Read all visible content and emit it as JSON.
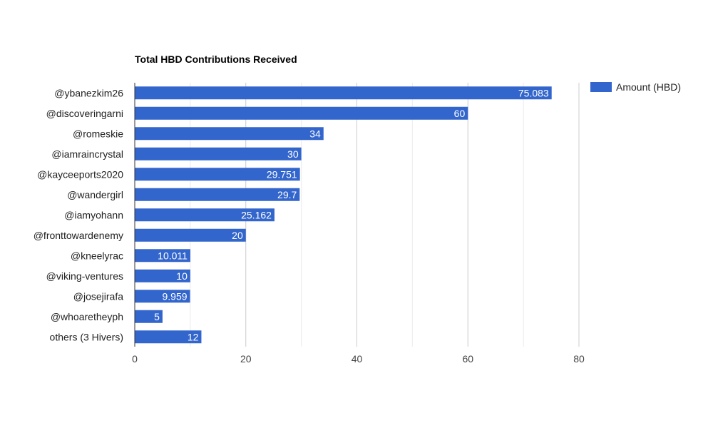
{
  "chart_data": {
    "type": "bar",
    "orientation": "horizontal",
    "title": "Total HBD Contributions Received",
    "categories": [
      "@ybanezkim26",
      "@discoveringarni",
      "@romeskie",
      "@iamraincrystal",
      "@kayceeports2020",
      "@wandergirl",
      "@iamyohann",
      "@fronttowardenemy",
      "@kneelyrac",
      "@viking-ventures",
      "@josejirafa",
      "@whoaretheyph",
      "others (3 Hivers)"
    ],
    "series": [
      {
        "name": "Amount (HBD)",
        "color": "#3366cc",
        "values": [
          75.083,
          60,
          34,
          30,
          29.751,
          29.7,
          25.162,
          20,
          10.011,
          10,
          9.959,
          5,
          12
        ],
        "labels": [
          "75.083",
          "60",
          "34",
          "30",
          "29.751",
          "29.7",
          "25.162",
          "20",
          "10.011",
          "10",
          "9.959",
          "5",
          "12"
        ]
      }
    ],
    "xlim": [
      0,
      80
    ],
    "xticks": [
      0,
      20,
      40,
      60,
      80
    ],
    "xtick_labels": [
      "0",
      "20",
      "40",
      "60",
      "80"
    ],
    "grid": true,
    "legend_position": "right"
  },
  "colors": {
    "bar": "#3366cc",
    "grid_major": "#cccccc",
    "grid_minor": "#ebebeb",
    "axis": "#333333"
  }
}
